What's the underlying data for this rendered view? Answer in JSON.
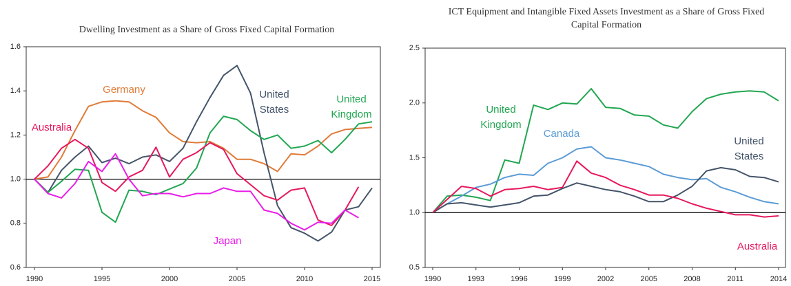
{
  "chart_data": [
    {
      "type": "line",
      "title": "Dwelling Investment as a Share of Gross Fixed Capital Formation",
      "x": [
        1990,
        1991,
        1992,
        1993,
        1994,
        1995,
        1996,
        1997,
        1998,
        1999,
        2000,
        2001,
        2002,
        2003,
        2004,
        2005,
        2006,
        2007,
        2008,
        2009,
        2010,
        2011,
        2012,
        2013,
        2014,
        2015
      ],
      "xlim": [
        1990,
        2015
      ],
      "xticks": [
        1990,
        1995,
        2000,
        2005,
        2010,
        2015
      ],
      "ylim": [
        0.6,
        1.6
      ],
      "yticks": [
        0.6,
        0.8,
        {
          "value": 1,
          "label": "1.0"
        },
        1.2,
        1.4,
        1.6
      ],
      "reference_line": 1,
      "series": [
        {
          "name": "Germany",
          "color": "#e07b39",
          "values": [
            1.0,
            1.01,
            1.1,
            1.22,
            1.33,
            1.35,
            1.355,
            1.35,
            1.31,
            1.28,
            1.21,
            1.17,
            1.165,
            1.17,
            1.14,
            1.09,
            1.09,
            1.07,
            1.035,
            1.115,
            1.11,
            1.15,
            1.205,
            1.225,
            1.23,
            1.235
          ]
        },
        {
          "name": "United States",
          "color": "#44546a",
          "values": [
            1.0,
            0.94,
            1.04,
            1.1,
            1.15,
            1.075,
            1.095,
            1.07,
            1.1,
            1.11,
            1.08,
            1.14,
            1.26,
            1.37,
            1.47,
            1.515,
            1.39,
            1.12,
            0.88,
            0.78,
            0.755,
            0.72,
            0.76,
            0.86,
            0.875,
            0.96
          ]
        },
        {
          "name": "United Kingdom",
          "color": "#21a651",
          "values": [
            1.0,
            0.94,
            0.99,
            1.045,
            1.04,
            0.85,
            0.805,
            0.95,
            0.945,
            0.93,
            0.955,
            0.98,
            1.05,
            1.21,
            1.285,
            1.27,
            1.22,
            1.18,
            1.2,
            1.14,
            1.15,
            1.175,
            1.12,
            1.18,
            1.25,
            1.26
          ]
        },
        {
          "name": "Australia",
          "color": "#e6185c",
          "values": [
            1.0,
            1.06,
            1.14,
            1.18,
            1.14,
            0.985,
            0.945,
            1.01,
            1.04,
            1.145,
            1.01,
            1.09,
            1.12,
            1.165,
            1.135,
            1.025,
            0.975,
            0.925,
            0.905,
            0.95,
            0.96,
            0.815,
            0.79,
            0.86,
            0.965,
            null
          ]
        },
        {
          "name": "Japan",
          "color": "#e81ee8",
          "values": [
            1.0,
            0.935,
            0.915,
            0.98,
            1.08,
            1.035,
            1.115,
            1.0,
            0.925,
            0.935,
            0.935,
            0.92,
            0.935,
            0.935,
            0.96,
            0.945,
            0.945,
            0.86,
            0.845,
            0.8,
            0.77,
            0.805,
            0.8,
            0.86,
            0.825,
            null
          ]
        }
      ]
    },
    {
      "type": "line",
      "title": "ICT Equipment and Intangible Fixed Assets Investment as a Share of Gross Fixed Capital Formation",
      "x": [
        1990,
        1991,
        1992,
        1993,
        1994,
        1995,
        1996,
        1997,
        1998,
        1999,
        2000,
        2001,
        2002,
        2003,
        2004,
        2005,
        2006,
        2007,
        2008,
        2009,
        2010,
        2011,
        2012,
        2013,
        2014
      ],
      "xlim": [
        1990,
        2014
      ],
      "xticks": [
        1990,
        1993,
        1996,
        1999,
        2002,
        2005,
        2008,
        2011,
        2014
      ],
      "ylim": [
        0.5,
        2.5
      ],
      "yticks": [
        0.5,
        {
          "value": 1,
          "label": "1.0"
        },
        1.5,
        {
          "value": 2,
          "label": "2.0"
        },
        2.5
      ],
      "reference_line": 1,
      "series": [
        {
          "name": "United Kingdom",
          "color": "#21a651",
          "values": [
            1.0,
            1.15,
            1.16,
            1.14,
            1.11,
            1.48,
            1.45,
            1.98,
            1.94,
            2.0,
            1.99,
            2.13,
            1.96,
            1.95,
            1.89,
            1.88,
            1.8,
            1.77,
            1.92,
            2.04,
            2.08,
            2.1,
            2.11,
            2.1,
            2.02
          ]
        },
        {
          "name": "Canada",
          "color": "#5b9bd5",
          "values": [
            1.0,
            1.08,
            1.15,
            1.23,
            1.26,
            1.32,
            1.35,
            1.34,
            1.45,
            1.5,
            1.58,
            1.6,
            1.5,
            1.48,
            1.45,
            1.42,
            1.35,
            1.32,
            1.3,
            1.31,
            1.23,
            1.19,
            1.14,
            1.1,
            1.08
          ]
        },
        {
          "name": "United States",
          "color": "#44546a",
          "values": [
            1.0,
            1.08,
            1.09,
            1.07,
            1.05,
            1.07,
            1.09,
            1.15,
            1.16,
            1.22,
            1.27,
            1.24,
            1.21,
            1.19,
            1.15,
            1.1,
            1.1,
            1.16,
            1.24,
            1.38,
            1.41,
            1.39,
            1.33,
            1.32,
            1.28
          ]
        },
        {
          "name": "Australia",
          "color": "#e6185c",
          "values": [
            1.0,
            1.12,
            1.24,
            1.22,
            1.15,
            1.21,
            1.22,
            1.24,
            1.21,
            1.23,
            1.47,
            1.36,
            1.32,
            1.25,
            1.21,
            1.16,
            1.16,
            1.13,
            1.08,
            1.04,
            1.01,
            0.98,
            0.98,
            0.96,
            0.97
          ]
        }
      ]
    }
  ]
}
